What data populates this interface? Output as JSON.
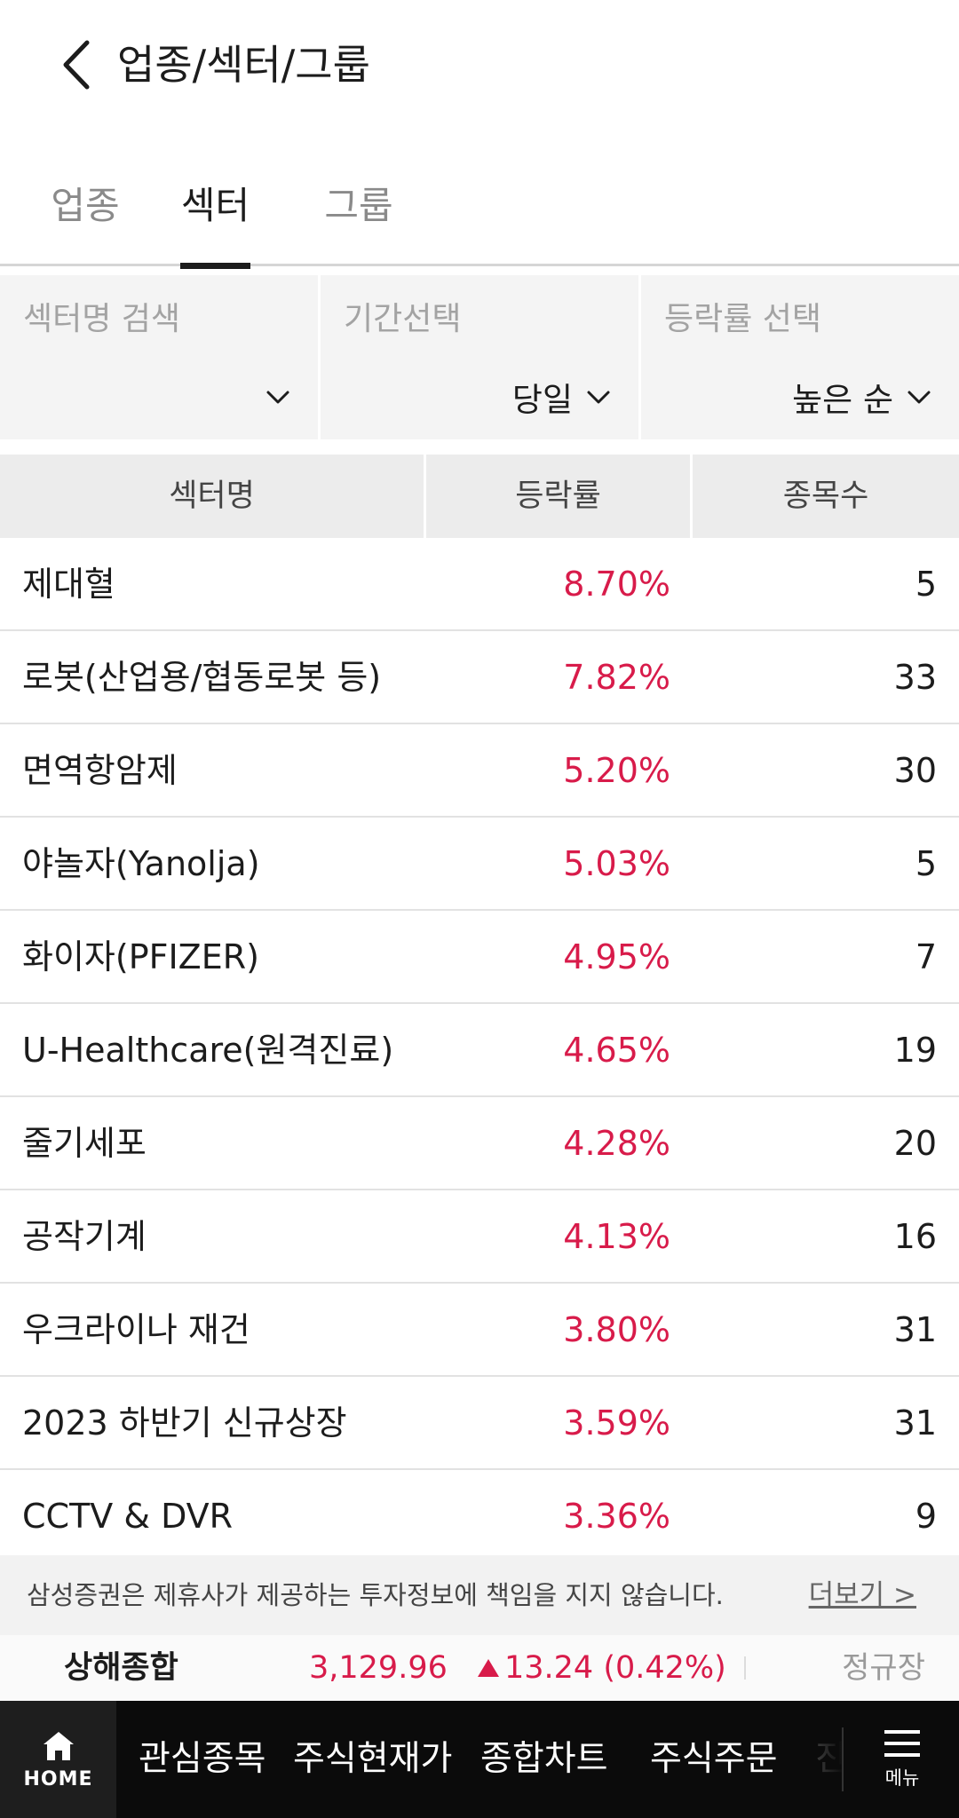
{
  "header": {
    "title": "업종/섹터/그룹"
  },
  "tabs": [
    {
      "label": "업종",
      "active": false
    },
    {
      "label": "섹터",
      "active": true
    },
    {
      "label": "그룹",
      "active": false
    }
  ],
  "filters": {
    "search": {
      "label": "섹터명 검색",
      "value": ""
    },
    "period": {
      "label": "기간선택",
      "value": "당일"
    },
    "rate": {
      "label": "등락률 선택",
      "value": "높은 순"
    }
  },
  "table": {
    "headers": [
      "섹터명",
      "등락률",
      "종목수"
    ],
    "rows": [
      {
        "name": "제대혈",
        "rate": "8.70%",
        "count": "5"
      },
      {
        "name": "로봇(산업용/협동로봇 등)",
        "rate": "7.82%",
        "count": "33"
      },
      {
        "name": "면역항암제",
        "rate": "5.20%",
        "count": "30"
      },
      {
        "name": "야놀자(Yanolja)",
        "rate": "5.03%",
        "count": "5"
      },
      {
        "name": "화이자(PFIZER)",
        "rate": "4.95%",
        "count": "7"
      },
      {
        "name": "U-Healthcare(원격진료)",
        "rate": "4.65%",
        "count": "19"
      },
      {
        "name": "줄기세포",
        "rate": "4.28%",
        "count": "20"
      },
      {
        "name": "공작기계",
        "rate": "4.13%",
        "count": "16"
      },
      {
        "name": "우크라이나 재건",
        "rate": "3.80%",
        "count": "31"
      },
      {
        "name": "2023 하반기 신규상장",
        "rate": "3.59%",
        "count": "31"
      },
      {
        "name": "CCTV & DVR",
        "rate": "3.36%",
        "count": "9"
      }
    ]
  },
  "disclaimer": {
    "text": "삼성증권은 제휴사가 제공하는 투자정보에 책임을 지지 않습니다.",
    "more": "더보기 >"
  },
  "ticker": {
    "name": "상해종합",
    "value": "3,129.96",
    "change": "13.24 (0.42%)",
    "status": "정규장"
  },
  "bottom_nav": {
    "home": "HOME",
    "items": [
      "관심종목",
      "주식현재가",
      "종합차트",
      "주식주문",
      "진"
    ],
    "menu": "메뉴"
  },
  "colors": {
    "up": "#d81b4a",
    "nav_bg": "#0b0b0b"
  },
  "icons": {
    "back": "chevron-left-icon",
    "dropdown": "chevron-down-icon",
    "home": "home-icon",
    "menu": "hamburger-icon"
  }
}
